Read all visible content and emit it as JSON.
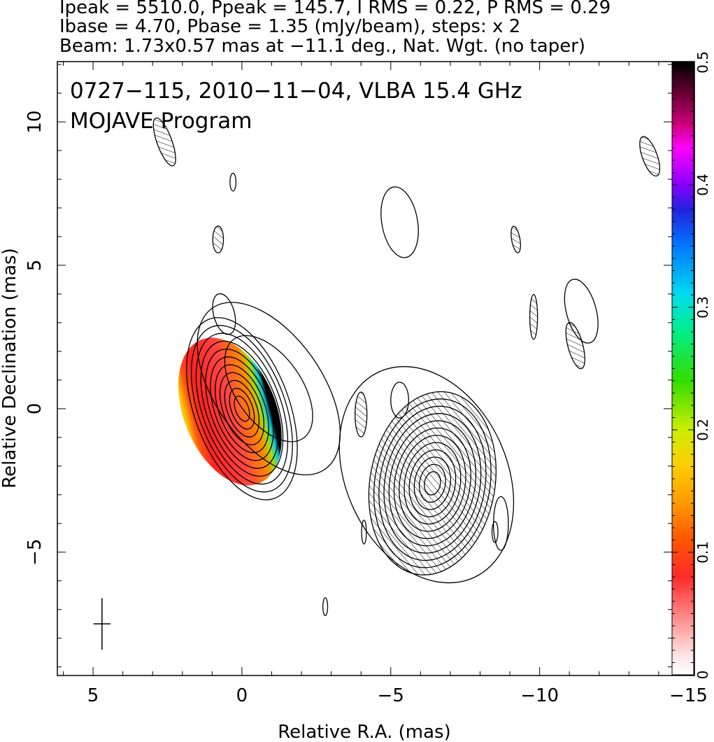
{
  "header": {
    "line1": "Ipeak = 5510.0, Ppeak = 145.7, I RMS = 0.22, P RMS = 0.29",
    "line2": "Ibase = 4.70, Pbase = 1.35 (mJy/beam), steps: x 2",
    "line3": "Beam: 1.73x0.57 mas at −11.1 deg., Nat. Wgt. (no taper)"
  },
  "plot": {
    "title_line1": "0727−115, 2010−11−04, VLBA 15.4 GHz",
    "title_line2": "MOJAVE Program"
  },
  "chart_data": {
    "type": "contour",
    "xlabel": "Relative R.A. (mas)",
    "ylabel": "Relative Declination (mas)",
    "xlim": [
      6.2,
      -15.2
    ],
    "ylim": [
      -9.3,
      12.1
    ],
    "x_ticks": [
      5,
      0,
      -5,
      -10,
      -15
    ],
    "x_tick_labels": [
      "5",
      "0",
      "−5",
      "−10",
      "−15"
    ],
    "y_ticks": [
      10,
      5,
      0,
      -5
    ],
    "y_tick_labels": [
      "10",
      "5",
      "0",
      "−5"
    ],
    "colorbar": {
      "range": [
        0,
        0.5
      ],
      "ticks": [
        0,
        0.1,
        0.2,
        0.3,
        0.4,
        0.5
      ],
      "tick_labels": [
        "0",
        "0.1",
        "0.2",
        "0.3",
        "0.4",
        "0.5"
      ]
    },
    "beam": {
      "major_mas": 1.73,
      "minor_mas": 0.57,
      "pa_deg": -11.1,
      "x": 4.7,
      "y": -7.5
    },
    "components": [
      {
        "id": "core",
        "x": 0.0,
        "y": 0.0,
        "a": 3.2,
        "b": 1.6,
        "pa": -20,
        "levels": 11
      },
      {
        "id": "core-halo",
        "x": -0.9,
        "y": 0.7,
        "a": 3.3,
        "b": 1.8,
        "pa": -35,
        "levels": 2
      },
      {
        "id": "counter",
        "x": -6.4,
        "y": -2.6,
        "a": 3.1,
        "b": 2.1,
        "pa": 10,
        "levels": 12,
        "negative": true
      },
      {
        "id": "counter-halo",
        "x": -6.2,
        "y": -2.3,
        "a": 3.8,
        "b": 2.7,
        "pa": -25,
        "levels": 1
      }
    ],
    "polarization_patch": {
      "x": 0.4,
      "y": -0.1,
      "a": 2.6,
      "b": 1.55,
      "pa": -22
    },
    "islands": [
      {
        "x": 2.6,
        "y": 9.3,
        "a": 0.85,
        "b": 0.25,
        "pa": -20,
        "hatched": true
      },
      {
        "x": 0.3,
        "y": 7.9,
        "a": 0.3,
        "b": 0.1,
        "pa": 0,
        "hatched": false
      },
      {
        "x": 0.8,
        "y": 5.9,
        "a": 0.45,
        "b": 0.18,
        "pa": 0,
        "hatched": true
      },
      {
        "x": 0.6,
        "y": 3.3,
        "a": 0.7,
        "b": 0.35,
        "pa": -15,
        "hatched": false
      },
      {
        "x": -5.3,
        "y": 6.5,
        "a": 1.2,
        "b": 0.6,
        "pa": -10,
        "hatched": false
      },
      {
        "x": -9.2,
        "y": 5.9,
        "a": 0.45,
        "b": 0.14,
        "pa": -10,
        "hatched": true
      },
      {
        "x": -9.8,
        "y": 3.2,
        "a": 0.75,
        "b": 0.13,
        "pa": 0,
        "hatched": true
      },
      {
        "x": -11.4,
        "y": 3.4,
        "a": 1.1,
        "b": 0.5,
        "pa": -15,
        "hatched": false
      },
      {
        "x": -11.2,
        "y": 2.2,
        "a": 0.8,
        "b": 0.25,
        "pa": -15,
        "hatched": true
      },
      {
        "x": -13.7,
        "y": 8.8,
        "a": 0.7,
        "b": 0.25,
        "pa": -20,
        "hatched": true
      },
      {
        "x": -4.0,
        "y": -0.2,
        "a": 0.75,
        "b": 0.2,
        "pa": 0,
        "hatched": true
      },
      {
        "x": -5.3,
        "y": 0.3,
        "a": 0.6,
        "b": 0.3,
        "pa": 0,
        "hatched": false
      },
      {
        "x": -4.1,
        "y": -4.3,
        "a": 0.4,
        "b": 0.08,
        "pa": 0,
        "hatched": false
      },
      {
        "x": -2.8,
        "y": -6.9,
        "a": 0.3,
        "b": 0.08,
        "pa": 0,
        "hatched": false
      },
      {
        "x": -8.7,
        "y": -4.0,
        "a": 0.9,
        "b": 0.25,
        "pa": 0,
        "hatched": false
      },
      {
        "x": -8.5,
        "y": -4.3,
        "a": 0.35,
        "b": 0.1,
        "pa": 0,
        "hatched": false
      }
    ]
  }
}
